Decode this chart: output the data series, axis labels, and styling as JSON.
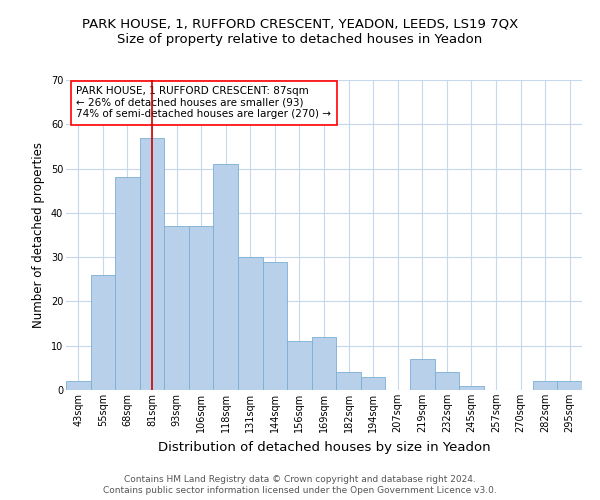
{
  "title": "PARK HOUSE, 1, RUFFORD CRESCENT, YEADON, LEEDS, LS19 7QX",
  "subtitle": "Size of property relative to detached houses in Yeadon",
  "xlabel": "Distribution of detached houses by size in Yeadon",
  "ylabel": "Number of detached properties",
  "categories": [
    "43sqm",
    "55sqm",
    "68sqm",
    "81sqm",
    "93sqm",
    "106sqm",
    "118sqm",
    "131sqm",
    "144sqm",
    "156sqm",
    "169sqm",
    "182sqm",
    "194sqm",
    "207sqm",
    "219sqm",
    "232sqm",
    "245sqm",
    "257sqm",
    "270sqm",
    "282sqm",
    "295sqm"
  ],
  "values": [
    2,
    26,
    48,
    57,
    37,
    37,
    51,
    30,
    29,
    11,
    12,
    4,
    3,
    0,
    7,
    4,
    1,
    0,
    0,
    2,
    2
  ],
  "bar_color": "#b8d0ea",
  "bar_edgecolor": "#7aafd4",
  "ylim": [
    0,
    70
  ],
  "yticks": [
    0,
    10,
    20,
    30,
    40,
    50,
    60,
    70
  ],
  "red_line_x": 3.5,
  "annotation_title": "PARK HOUSE, 1 RUFFORD CRESCENT: 87sqm",
  "annotation_line1": "← 26% of detached houses are smaller (93)",
  "annotation_line2": "74% of semi-detached houses are larger (270) →",
  "footer1": "Contains HM Land Registry data © Crown copyright and database right 2024.",
  "footer2": "Contains public sector information licensed under the Open Government Licence v3.0.",
  "bg_color": "#ffffff",
  "grid_color": "#c8d8ec",
  "title_fontsize": 9.5,
  "subtitle_fontsize": 9.5,
  "xlabel_fontsize": 9.5,
  "ylabel_fontsize": 8.5,
  "tick_fontsize": 7,
  "footer_fontsize": 6.5,
  "annotation_fontsize": 7.5
}
